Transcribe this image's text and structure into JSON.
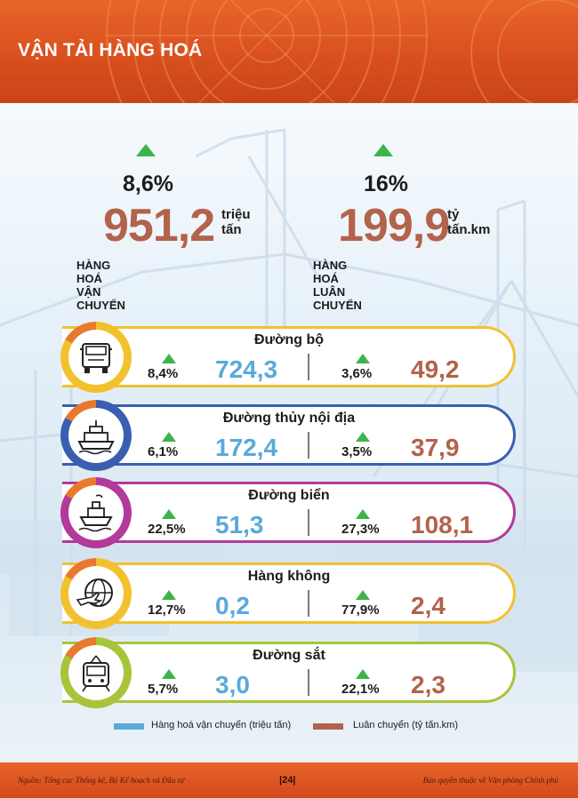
{
  "header": {
    "title": "VẬN TẢI HÀNG HOÁ"
  },
  "summary": {
    "freight_transport": {
      "growth": "8,6%",
      "value": "951,2",
      "unit": "triệu tấn",
      "caption": "HÀNG HOÁ VẬN CHUYỂN"
    },
    "freight_rotation": {
      "growth": "16%",
      "value": "199,9",
      "unit": "tỷ tấn.km",
      "caption": "HÀNG HOÁ LUÂN CHUYỂN"
    }
  },
  "modes": [
    {
      "name": "Đường bộ",
      "transport_growth": "8,4%",
      "transport_value": "724,3",
      "rotation_growth": "3,6%",
      "rotation_value": "49,2",
      "color": "#f2c12e",
      "icon": "truck-icon"
    },
    {
      "name": "Đường thủy nội địa",
      "transport_growth": "6,1%",
      "transport_value": "172,4",
      "rotation_growth": "3,5%",
      "rotation_value": "37,9",
      "color": "#3a5fb0",
      "icon": "river-boat-icon"
    },
    {
      "name": "Đường biển",
      "transport_growth": "22,5%",
      "transport_value": "51,3",
      "rotation_growth": "27,3%",
      "rotation_value": "108,1",
      "color": "#b23a9a",
      "icon": "ship-icon"
    },
    {
      "name": "Hàng không",
      "transport_growth": "12,7%",
      "transport_value": "0,2",
      "rotation_growth": "77,9%",
      "rotation_value": "2,4",
      "color": "#f2c12e",
      "icon": "airplane-globe-icon"
    },
    {
      "name": "Đường sắt",
      "transport_growth": "5,7%",
      "transport_value": "3,0",
      "rotation_growth": "22,1%",
      "rotation_value": "2,3",
      "color": "#a8c43a",
      "icon": "train-icon"
    }
  ],
  "legend": {
    "transport": {
      "label": "Hàng hoá vận chuyển (triệu tấn)",
      "color": "#5aa9da"
    },
    "rotation": {
      "label": "Luân chuyển (tỷ tấn.km)",
      "color": "#b3624b"
    }
  },
  "footer": {
    "source": "Nguồn: Tổng cục Thống kê, Bộ Kế hoạch và Đầu tư",
    "page": "|24|",
    "copyright": "Bản quyền thuộc về Văn phòng Chính phủ"
  }
}
